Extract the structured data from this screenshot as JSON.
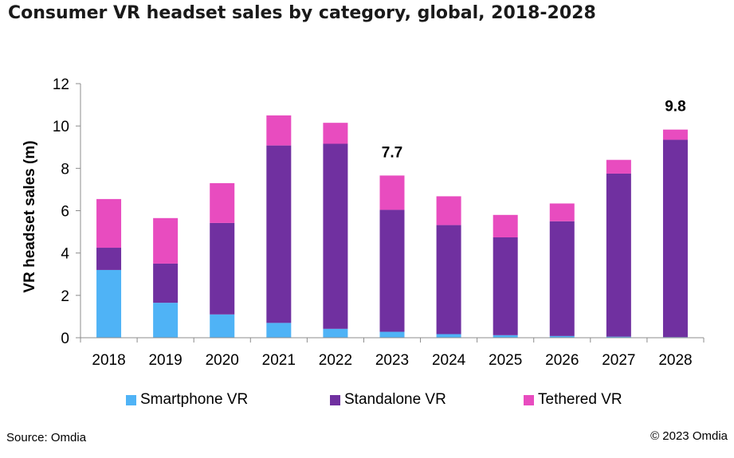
{
  "title": "Consumer VR headset sales by category, global, 2018-2028",
  "source": "Source: Omdia",
  "copyright": "© 2023 Omdia",
  "chart_data": {
    "type": "bar",
    "stacked": true,
    "title": "Consumer VR headset sales by category, global, 2018-2028",
    "xlabel": "",
    "ylabel": "VR headset sales (m)",
    "ylim": [
      0,
      12
    ],
    "yticks": [
      0,
      2,
      4,
      6,
      8,
      10,
      12
    ],
    "grid": false,
    "legend_position": "bottom",
    "categories": [
      "2018",
      "2019",
      "2020",
      "2021",
      "2022",
      "2023",
      "2024",
      "2025",
      "2026",
      "2027",
      "2028"
    ],
    "series": [
      {
        "name": "Smartphone VR",
        "color": "#4fb3f6",
        "values": [
          3.2,
          1.65,
          1.1,
          0.7,
          0.42,
          0.28,
          0.17,
          0.12,
          0.08,
          0.05,
          0.03
        ]
      },
      {
        "name": "Standalone VR",
        "color": "#7030a0",
        "values": [
          1.05,
          1.85,
          4.32,
          8.38,
          8.74,
          5.76,
          5.15,
          4.62,
          5.42,
          7.7,
          9.32
        ]
      },
      {
        "name": "Tethered VR",
        "color": "#e84cbf",
        "values": [
          2.3,
          2.15,
          1.88,
          1.42,
          0.99,
          1.62,
          1.36,
          1.06,
          0.84,
          0.65,
          0.48
        ]
      }
    ],
    "annotations": [
      {
        "category": "2023",
        "text": "7.7"
      },
      {
        "category": "2028",
        "text": "9.8"
      }
    ]
  }
}
